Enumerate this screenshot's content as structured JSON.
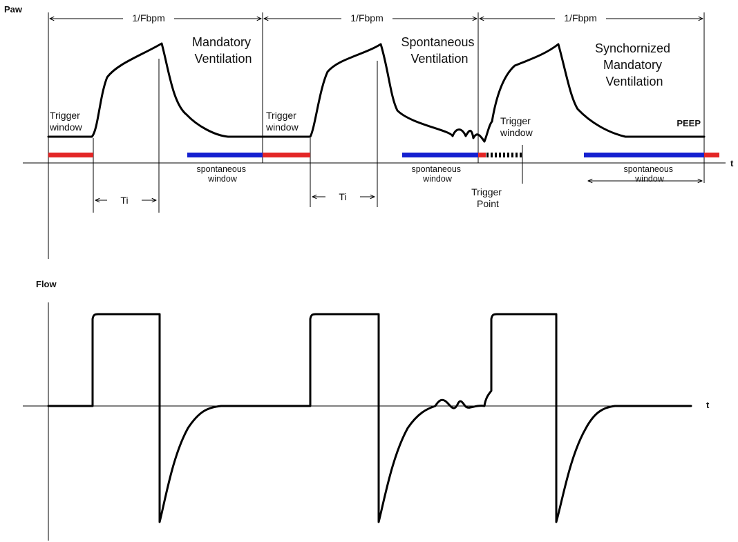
{
  "colors": {
    "trigger_window": "#e32626",
    "spontaneous_window": "#1420d0",
    "waveform": "#000000",
    "axis": "#000000",
    "background": "#ffffff"
  },
  "paw_panel": {
    "y_label": "Paw",
    "t_label": "t",
    "period_label": "1/Fbpm",
    "phase_titles": {
      "mandatory": [
        "Mandatory",
        "Ventilation"
      ],
      "spontaneous": [
        "Spontaneous",
        "Ventilation"
      ],
      "synchronized": [
        "Synchornized",
        "Mandatory",
        "Ventilation"
      ]
    },
    "trigger_window_label": [
      "Trigger",
      "window"
    ],
    "spontaneous_window_label": [
      "spontaneous",
      "window"
    ],
    "ti_label": "Ti",
    "trigger_point_label": [
      "Trigger",
      "Point"
    ],
    "peep_label": "PEEP"
  },
  "flow_panel": {
    "y_label": "Flow",
    "t_label": "t"
  }
}
